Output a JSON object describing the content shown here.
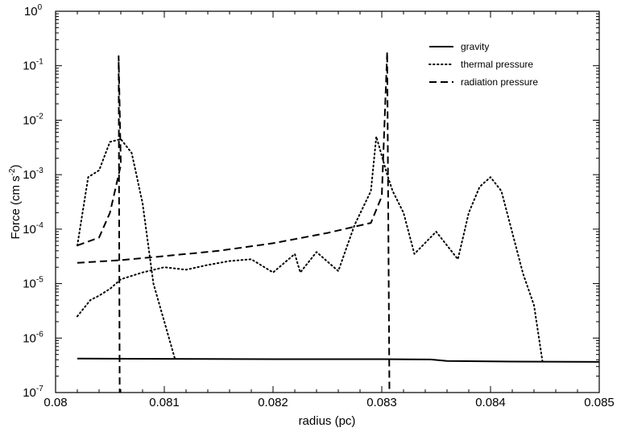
{
  "chart_data": {
    "type": "line",
    "title": "",
    "xlabel": "radius (pc)",
    "ylabel": {
      "main": "Force (cm s",
      "exp": "-2",
      "close": ")"
    },
    "xlim": [
      0.08,
      0.085
    ],
    "ylim": [
      1e-07,
      1
    ],
    "yscale": "log",
    "xticks": [
      0.08,
      0.081,
      0.082,
      0.083,
      0.084,
      0.085
    ],
    "xtick_labels": [
      "0.08",
      "0.081",
      "0.082",
      "0.083",
      "0.084",
      "0.085"
    ],
    "yticks": [
      {
        "value": 1e-07,
        "base": "10",
        "exp": "-7"
      },
      {
        "value": 1e-06,
        "base": "10",
        "exp": "-6"
      },
      {
        "value": 1e-05,
        "base": "10",
        "exp": "-5"
      },
      {
        "value": 0.0001,
        "base": "10",
        "exp": "-4"
      },
      {
        "value": 0.001,
        "base": "10",
        "exp": "-3"
      },
      {
        "value": 0.01,
        "base": "10",
        "exp": "-2"
      },
      {
        "value": 0.1,
        "base": "10",
        "exp": "-1"
      },
      {
        "value": 1,
        "base": "10",
        "exp": "0"
      }
    ],
    "grid": false,
    "legend_position": "top-right",
    "series": [
      {
        "name": "gravity",
        "style": "solid",
        "points": [
          [
            0.0802,
            4.2e-07
          ],
          [
            0.081,
            4.15e-07
          ],
          [
            0.082,
            4.1e-07
          ],
          [
            0.083,
            4.1e-07
          ],
          [
            0.08345,
            4.05e-07
          ],
          [
            0.0836,
            3.8e-07
          ],
          [
            0.0842,
            3.7e-07
          ],
          [
            0.085,
            3.65e-07
          ]
        ]
      },
      {
        "name": "thermal pressure",
        "style": "dotted",
        "points": [
          [
            0.0802,
            2.5e-06
          ],
          [
            0.08032,
            5e-06
          ],
          [
            0.0804,
            6e-06
          ],
          [
            0.0805,
            8e-06
          ],
          [
            0.0806,
            1.2e-05
          ],
          [
            0.0808,
            1.6e-05
          ],
          [
            0.081,
            2e-05
          ],
          [
            0.0812,
            1.8e-05
          ],
          [
            0.0814,
            2.2e-05
          ],
          [
            0.0816,
            2.6e-05
          ],
          [
            0.0818,
            2.8e-05
          ],
          [
            0.082,
            1.6e-05
          ],
          [
            0.0822,
            3.5e-05
          ],
          [
            0.08225,
            1.6e-05
          ],
          [
            0.0824,
            3.8e-05
          ],
          [
            0.0826,
            1.7e-05
          ],
          [
            0.08275,
            0.00012
          ],
          [
            0.0829,
            0.0005
          ],
          [
            0.08295,
            0.005
          ],
          [
            0.08305,
            0.001
          ],
          [
            0.0831,
            0.0005
          ],
          [
            0.0832,
            0.0002
          ],
          [
            0.0833,
            3.5e-05
          ],
          [
            0.0835,
            9e-05
          ],
          [
            0.0837,
            2.8e-05
          ],
          [
            0.0838,
            0.0002
          ],
          [
            0.0839,
            0.0006
          ],
          [
            0.084,
            0.0009
          ],
          [
            0.0841,
            0.0005
          ],
          [
            0.0843,
            1.5e-05
          ],
          [
            0.0844,
            4e-06
          ],
          [
            0.08448,
            3.5e-07
          ]
        ]
      },
      {
        "name": "radiation pressure",
        "style": "dashed",
        "points": [
          [
            0.0802,
            2.4e-05
          ],
          [
            0.0806,
            2.7e-05
          ],
          [
            0.081,
            3.2e-05
          ],
          [
            0.0815,
            4e-05
          ],
          [
            0.082,
            5.5e-05
          ],
          [
            0.0825,
            8.5e-05
          ],
          [
            0.0829,
            0.00013
          ],
          [
            0.083,
            0.0004
          ],
          [
            0.08305,
            0.18
          ],
          [
            0.08307,
            1e-07
          ]
        ]
      },
      {
        "name": "",
        "style": "dotted",
        "points": [
          [
            0.0802,
            5e-05
          ],
          [
            0.0803,
            0.0009
          ],
          [
            0.0804,
            0.0012
          ],
          [
            0.0805,
            0.004
          ],
          [
            0.0806,
            0.0045
          ],
          [
            0.0807,
            0.0025
          ],
          [
            0.0808,
            0.0003
          ],
          [
            0.0809,
            1e-05
          ],
          [
            0.081,
            2e-06
          ],
          [
            0.0811,
            4e-07
          ]
        ]
      },
      {
        "name": "",
        "style": "dashed",
        "points": [
          [
            0.0802,
            5e-05
          ],
          [
            0.0804,
            7e-05
          ],
          [
            0.0805,
            0.0002
          ],
          [
            0.0806,
            0.0015
          ],
          [
            0.08058,
            0.15
          ],
          [
            0.08059,
            1e-07
          ]
        ]
      }
    ],
    "legend": [
      {
        "label": "gravity",
        "style": "solid"
      },
      {
        "label": "thermal pressure",
        "style": "dotted"
      },
      {
        "label": "radiation pressure",
        "style": "dashed"
      }
    ]
  }
}
